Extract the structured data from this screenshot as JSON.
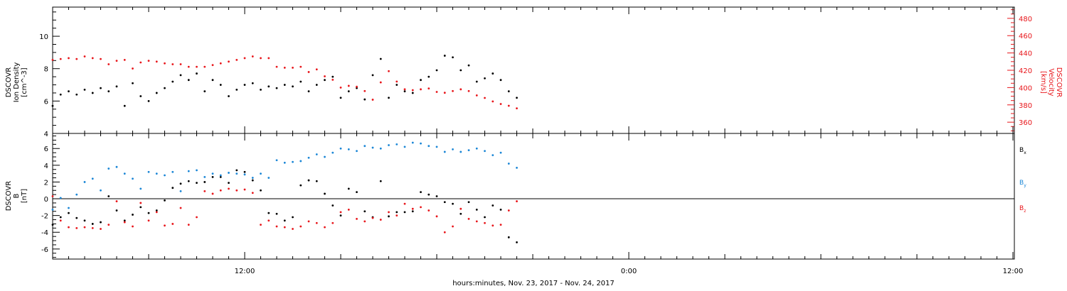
{
  "chart_data": [
    {
      "type": "scatter",
      "title": "",
      "ylabel": "DSCOVR\nIon Density\n[cm^-3]",
      "y2label": "DSCOVR\nVelocity\n[km/s]",
      "ylim": [
        4,
        11.8
      ],
      "y2lim": [
        347,
        493
      ],
      "yticks": [
        4,
        6,
        8,
        10
      ],
      "y2ticks": [
        360,
        380,
        400,
        420,
        440,
        460,
        480
      ],
      "colors": {
        "density": "#000000",
        "velocity": "#e8161b"
      },
      "series": [
        {
          "key": "density",
          "axis": "left",
          "x": [
            0.0,
            0.5,
            1.0,
            1.5,
            2.0,
            2.5,
            3.0,
            3.5,
            4.0,
            4.5,
            5.0,
            5.5,
            6.0,
            6.5,
            7.0,
            7.5,
            8.0,
            8.5,
            9.0,
            9.5,
            10.0,
            10.5,
            11.0,
            11.5,
            12.0,
            12.5,
            13.0,
            13.5,
            14.0,
            14.5,
            15.0,
            15.5,
            16.0,
            16.5,
            17.0,
            17.5,
            18.0,
            18.5,
            19.0,
            19.5,
            20.0,
            20.5,
            21.0,
            21.5,
            22.0,
            22.5,
            23.0,
            23.5,
            24.0,
            24.5,
            25.0,
            25.5,
            26.0,
            26.5,
            27.0,
            27.5,
            28.0,
            28.5,
            29.0
          ],
          "y": [
            5.7,
            6.4,
            6.6,
            6.4,
            6.7,
            6.5,
            6.8,
            6.6,
            6.9,
            5.7,
            7.1,
            6.3,
            6.0,
            6.5,
            6.8,
            7.2,
            7.6,
            7.3,
            7.7,
            6.6,
            7.3,
            7.0,
            6.3,
            6.7,
            7.0,
            7.1,
            6.7,
            6.9,
            6.8,
            7.0,
            6.9,
            7.2,
            6.6,
            7.0,
            7.3,
            7.5,
            6.2,
            6.6,
            6.8,
            6.1,
            7.6,
            8.6,
            6.2,
            7.0,
            6.6,
            6.5,
            7.3,
            7.5,
            7.9,
            8.8,
            8.7,
            7.9,
            8.2,
            7.2,
            7.4,
            7.7,
            7.3,
            6.6,
            6.2
          ]
        },
        {
          "key": "velocity",
          "axis": "right",
          "x": [
            0.0,
            0.5,
            1.0,
            1.5,
            2.0,
            2.5,
            3.0,
            3.5,
            4.0,
            4.5,
            5.0,
            5.5,
            6.0,
            6.5,
            7.0,
            7.5,
            8.0,
            8.5,
            9.0,
            9.5,
            10.0,
            10.5,
            11.0,
            11.5,
            12.0,
            12.5,
            13.0,
            13.5,
            14.0,
            14.5,
            15.0,
            15.5,
            16.0,
            16.5,
            17.0,
            17.5,
            18.0,
            18.5,
            19.0,
            19.5,
            20.0,
            20.5,
            21.0,
            21.5,
            22.0,
            22.5,
            23.0,
            23.5,
            24.0,
            24.5,
            25.0,
            25.5,
            26.0,
            26.5,
            27.0,
            27.5,
            28.0,
            28.5,
            29.0
          ],
          "y": [
            432,
            433,
            434,
            433,
            436,
            434,
            433,
            427,
            431,
            432,
            422,
            429,
            431,
            430,
            428,
            427,
            427,
            424,
            424,
            424,
            426,
            428,
            430,
            432,
            434,
            436,
            434,
            434,
            424,
            423,
            423,
            424,
            418,
            421,
            413,
            409,
            400,
            402,
            401,
            396,
            386,
            406,
            419,
            407,
            398,
            397,
            398,
            399,
            395,
            394,
            396,
            398,
            396,
            391,
            388,
            384,
            381,
            379,
            376
          ]
        }
      ]
    },
    {
      "type": "scatter",
      "title": "",
      "ylabel": "DSCOVR\nB\n[nT]",
      "xlabel": "hours:minutes, Nov. 23, 2017 - Nov. 24, 2017",
      "xticks": [
        "12:00",
        "0:00",
        "12:00"
      ],
      "xlim": [
        0,
        60
      ],
      "ylim": [
        -7.2,
        7.8
      ],
      "yticks": [
        -6,
        -4,
        -2,
        0,
        2,
        4,
        6
      ],
      "series": [
        {
          "name": "Bx",
          "color": "#000000",
          "x": [
            0.0,
            0.5,
            1.0,
            1.5,
            2.0,
            2.5,
            3.0,
            3.5,
            4.0,
            4.5,
            5.0,
            5.5,
            6.0,
            6.5,
            7.0,
            7.5,
            8.0,
            8.5,
            9.0,
            9.5,
            10.0,
            10.5,
            11.0,
            11.5,
            12.0,
            12.5,
            13.0,
            13.5,
            14.0,
            14.5,
            15.0,
            15.5,
            16.0,
            16.5,
            17.0,
            17.5,
            18.0,
            18.5,
            19.0,
            19.5,
            20.0,
            20.5,
            21.0,
            21.5,
            22.0,
            22.5,
            23.0,
            23.5,
            24.0,
            24.5,
            25.0,
            25.5,
            26.0,
            26.5,
            27.0,
            27.5,
            28.0,
            28.5,
            29.0
          ],
          "y": [
            -3.1,
            -2.2,
            -1.7,
            -2.3,
            -2.6,
            -3.0,
            -2.8,
            0.3,
            -1.4,
            -2.6,
            -1.9,
            -1.0,
            -1.7,
            -1.4,
            -0.2,
            1.3,
            1.8,
            2.1,
            1.9,
            2.0,
            2.6,
            2.6,
            1.9,
            3.4,
            3.2,
            2.2,
            1.0,
            -1.7,
            -1.8,
            -2.6,
            -2.2,
            1.6,
            2.2,
            2.1,
            0.6,
            -0.8,
            -2.0,
            1.2,
            0.8,
            -1.5,
            -2.2,
            2.1,
            -2.1,
            -1.6,
            -1.6,
            -1.5,
            0.8,
            0.5,
            0.3,
            -0.4,
            -0.6,
            -1.8,
            -0.4,
            -1.3,
            -2.2,
            -0.8,
            -1.3,
            -4.6,
            -5.2
          ]
        },
        {
          "name": "By",
          "color": "#1a86d6",
          "x": [
            0.0,
            0.5,
            1.0,
            1.5,
            2.0,
            2.5,
            3.0,
            3.5,
            4.0,
            4.5,
            5.0,
            5.5,
            6.0,
            6.5,
            7.0,
            7.5,
            8.0,
            8.5,
            9.0,
            9.5,
            10.0,
            10.5,
            11.0,
            11.5,
            12.0,
            12.5,
            13.0,
            13.5,
            14.0,
            14.5,
            15.0,
            15.5,
            16.0,
            16.5,
            17.0,
            17.5,
            18.0,
            18.5,
            19.0,
            19.5,
            20.0,
            20.5,
            21.0,
            21.5,
            22.0,
            22.5,
            23.0,
            23.5,
            24.0,
            24.5,
            25.0,
            25.5,
            26.0,
            26.5,
            27.0,
            27.5,
            28.0,
            28.5,
            29.0
          ],
          "y": [
            -1.3,
            0.1,
            -1.1,
            0.5,
            2.0,
            2.4,
            1.0,
            3.6,
            3.8,
            3.0,
            2.4,
            1.2,
            3.2,
            3.0,
            2.8,
            3.2,
            0.9,
            3.3,
            3.4,
            2.6,
            3.0,
            2.8,
            3.1,
            3.0,
            2.9,
            2.5,
            3.0,
            2.5,
            4.6,
            4.3,
            4.4,
            4.5,
            4.9,
            5.3,
            5.0,
            5.5,
            6.0,
            5.9,
            5.7,
            6.3,
            6.1,
            6.0,
            6.4,
            6.5,
            6.2,
            6.7,
            6.6,
            6.3,
            6.2,
            5.6,
            5.9,
            5.6,
            5.8,
            6.0,
            5.7,
            5.2,
            5.5,
            4.2,
            3.7
          ]
        },
        {
          "name": "Bz",
          "color": "#e8161b",
          "x": [
            0.0,
            0.5,
            1.0,
            1.5,
            2.0,
            2.5,
            3.0,
            3.5,
            4.0,
            4.5,
            5.0,
            5.5,
            6.0,
            6.5,
            7.0,
            7.5,
            8.0,
            8.5,
            9.0,
            9.5,
            10.0,
            10.5,
            11.0,
            11.5,
            12.0,
            12.5,
            13.0,
            13.5,
            14.0,
            14.5,
            15.0,
            15.5,
            16.0,
            16.5,
            17.0,
            17.5,
            18.0,
            18.5,
            19.0,
            19.5,
            20.0,
            20.5,
            21.0,
            21.5,
            22.0,
            22.5,
            23.0,
            23.5,
            24.0,
            24.5,
            25.0,
            25.5,
            26.0,
            26.5,
            27.0,
            27.5,
            28.0,
            28.5,
            29.0
          ],
          "y": [
            0.3,
            -2.6,
            -3.4,
            -3.5,
            -3.4,
            -3.5,
            -3.6,
            -3.1,
            -0.3,
            -2.8,
            -3.3,
            -0.5,
            -2.6,
            -1.6,
            -3.2,
            -3.0,
            -1.1,
            -3.1,
            -2.2,
            0.9,
            0.6,
            1.0,
            1.2,
            1.0,
            1.1,
            0.7,
            -3.1,
            -2.6,
            -3.3,
            -3.4,
            -3.6,
            -3.3,
            -2.7,
            -2.9,
            -3.4,
            -2.9,
            -1.6,
            -1.3,
            -2.4,
            -2.7,
            -2.3,
            -2.5,
            -1.6,
            -2.0,
            -0.6,
            -1.2,
            -1.0,
            -1.4,
            -2.1,
            -4.0,
            -3.3,
            -1.2,
            -2.4,
            -2.7,
            -2.9,
            -3.2,
            -3.1,
            -1.4,
            -0.3
          ]
        }
      ]
    }
  ]
}
